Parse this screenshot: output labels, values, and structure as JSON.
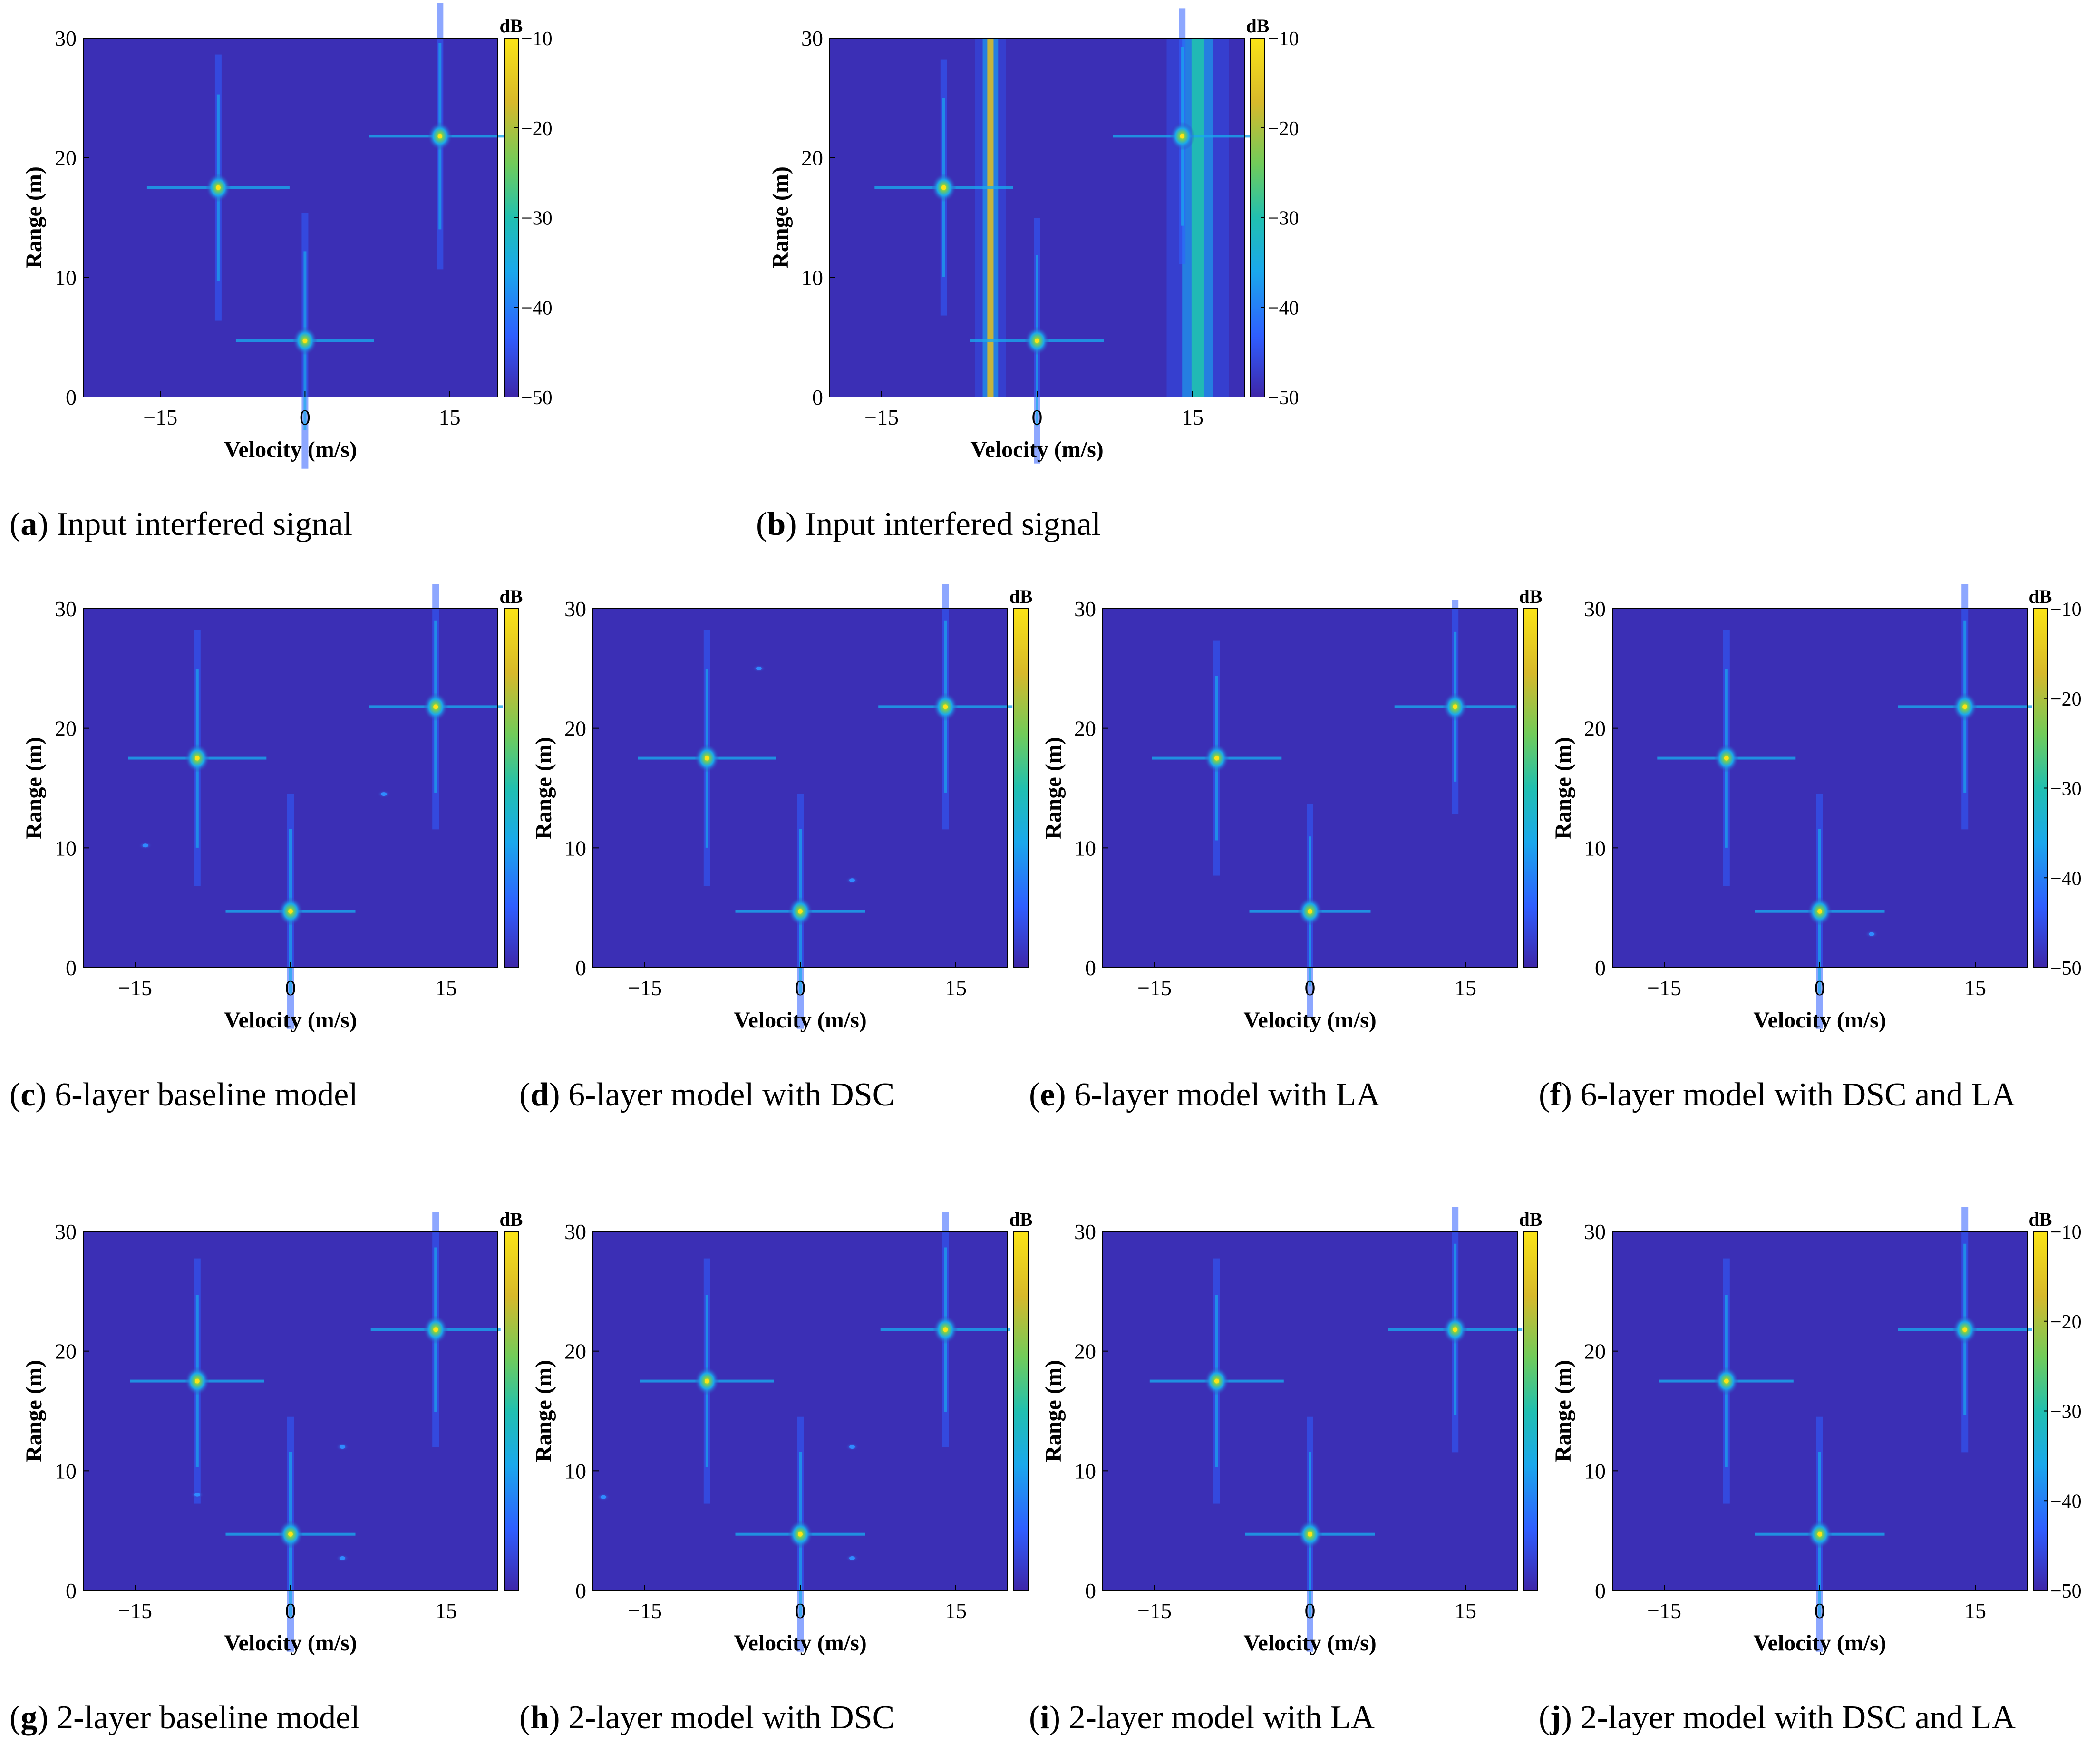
{
  "colors": {
    "background": "#3b2fb5",
    "colormap": [
      "#3e26a8",
      "#2f5eff",
      "#1aa8ec",
      "#21c0b0",
      "#71cc5a",
      "#d7b92b",
      "#fbe416"
    ]
  },
  "colorbar": {
    "unit": "dB",
    "ticks": [
      "−10",
      "−20",
      "−30",
      "−40",
      "−50"
    ]
  },
  "chart_data": [
    {
      "id": "a",
      "type": "heatmap",
      "title": "",
      "xlabel": "Velocity (m/s)",
      "ylabel": "Range (m)",
      "xlim": [
        -23,
        20
      ],
      "ylim": [
        0,
        30
      ],
      "clim": [
        -50,
        -10
      ],
      "xticks": [
        "−15",
        "0",
        "15"
      ],
      "yticks": [
        "0",
        "10",
        "20",
        "30"
      ],
      "colorbar_ticks": true,
      "caption_letter": "a",
      "caption_text": " Input interfered signal",
      "peaks": [
        {
          "v": -9,
          "r": 17.5,
          "level_db": -10
        },
        {
          "v": 14,
          "r": 21.8,
          "level_db": -10
        },
        {
          "v": 0,
          "r": 4.7,
          "level_db": -12
        }
      ],
      "interference_bands": []
    },
    {
      "id": "b",
      "type": "heatmap",
      "title": "",
      "xlabel": "Velocity (m/s)",
      "ylabel": "Range (m)",
      "xlim": [
        -20,
        20
      ],
      "ylim": [
        0,
        30
      ],
      "clim": [
        -50,
        -10
      ],
      "xticks": [
        "−15",
        "0",
        "15"
      ],
      "yticks": [
        "0",
        "10",
        "20",
        "30"
      ],
      "colorbar_ticks": true,
      "caption_letter": "b",
      "caption_text": " Input interfered signal",
      "peaks": [
        {
          "v": -9,
          "r": 17.5,
          "level_db": -12
        },
        {
          "v": 14,
          "r": 21.8,
          "level_db": -12
        },
        {
          "v": 0,
          "r": 4.7,
          "level_db": -14
        }
      ],
      "interference_bands": [
        {
          "v": -4.5,
          "width": 0.5,
          "level_db": -12
        },
        {
          "v": 15.5,
          "width": 1.0,
          "level_db": -25
        }
      ]
    },
    {
      "id": "c",
      "type": "heatmap",
      "title": "",
      "xlabel": "Velocity (m/s)",
      "ylabel": "Range (m)",
      "xlim": [
        -20,
        20
      ],
      "ylim": [
        0,
        30
      ],
      "clim": [
        -50,
        -10
      ],
      "xticks": [
        "−15",
        "0",
        "15"
      ],
      "yticks": [
        "0",
        "10",
        "20",
        "30"
      ],
      "colorbar_ticks": false,
      "caption_letter": "c",
      "caption_text": " 6-layer baseline model",
      "peaks": [
        {
          "v": -9,
          "r": 17.5,
          "level_db": -12
        },
        {
          "v": 14,
          "r": 21.8,
          "level_db": -14
        },
        {
          "v": 0,
          "r": 4.7,
          "level_db": -16
        },
        {
          "v": -14,
          "r": 10.2,
          "level_db": -40
        },
        {
          "v": 9,
          "r": 14.5,
          "level_db": -40
        }
      ],
      "interference_bands": []
    },
    {
      "id": "d",
      "type": "heatmap",
      "title": "",
      "xlabel": "Velocity (m/s)",
      "ylabel": "Range (m)",
      "xlim": [
        -20,
        20
      ],
      "ylim": [
        0,
        30
      ],
      "clim": [
        -50,
        -10
      ],
      "xticks": [
        "−15",
        "0",
        "15"
      ],
      "yticks": [
        "0",
        "10",
        "20",
        "30"
      ],
      "colorbar_ticks": false,
      "caption_letter": "d",
      "caption_text": " 6-layer model with DSC",
      "peaks": [
        {
          "v": -9,
          "r": 17.5,
          "level_db": -12
        },
        {
          "v": 14,
          "r": 21.8,
          "level_db": -14
        },
        {
          "v": 0,
          "r": 4.7,
          "level_db": -16
        },
        {
          "v": 5,
          "r": 7.3,
          "level_db": -40
        },
        {
          "v": -4,
          "r": 25,
          "level_db": -42
        }
      ],
      "interference_bands": []
    },
    {
      "id": "e",
      "type": "heatmap",
      "title": "",
      "xlabel": "Velocity (m/s)",
      "ylabel": "Range (m)",
      "xlim": [
        -20,
        20
      ],
      "ylim": [
        0,
        30
      ],
      "clim": [
        -50,
        -10
      ],
      "xticks": [
        "−15",
        "0",
        "15"
      ],
      "yticks": [
        "0",
        "10",
        "20",
        "30"
      ],
      "colorbar_ticks": false,
      "caption_letter": "e",
      "caption_text": " 6-layer model with LA",
      "peaks": [
        {
          "v": -9,
          "r": 17.5,
          "level_db": -16
        },
        {
          "v": 14,
          "r": 21.8,
          "level_db": -20
        },
        {
          "v": 0,
          "r": 4.7,
          "level_db": -20
        }
      ],
      "interference_bands": []
    },
    {
      "id": "f",
      "type": "heatmap",
      "title": "",
      "xlabel": "Velocity (m/s)",
      "ylabel": "Range (m)",
      "xlim": [
        -20,
        20
      ],
      "ylim": [
        0,
        30
      ],
      "clim": [
        -50,
        -10
      ],
      "xticks": [
        "−15",
        "0",
        "15"
      ],
      "yticks": [
        "0",
        "10",
        "20",
        "30"
      ],
      "colorbar_ticks": true,
      "caption_letter": "f",
      "caption_text": " 6-layer model with DSC and LA",
      "peaks": [
        {
          "v": -9,
          "r": 17.5,
          "level_db": -12
        },
        {
          "v": 14,
          "r": 21.8,
          "level_db": -14
        },
        {
          "v": 0,
          "r": 4.7,
          "level_db": -16
        },
        {
          "v": 5,
          "r": 2.8,
          "level_db": -40
        }
      ],
      "interference_bands": []
    },
    {
      "id": "g",
      "type": "heatmap",
      "title": "",
      "xlabel": "Velocity (m/s)",
      "ylabel": "Range (m)",
      "xlim": [
        -20,
        20
      ],
      "ylim": [
        0,
        30
      ],
      "clim": [
        -50,
        -10
      ],
      "xticks": [
        "−15",
        "0",
        "15"
      ],
      "yticks": [
        "0",
        "10",
        "20",
        "30"
      ],
      "colorbar_ticks": false,
      "caption_letter": "g",
      "caption_text": " 2-layer baseline model",
      "peaks": [
        {
          "v": -9,
          "r": 17.5,
          "level_db": -14
        },
        {
          "v": 14,
          "r": 21.8,
          "level_db": -16
        },
        {
          "v": 0,
          "r": 4.7,
          "level_db": -16
        },
        {
          "v": 5,
          "r": 2.7,
          "level_db": -38
        },
        {
          "v": -9,
          "r": 8,
          "level_db": -38
        },
        {
          "v": 5,
          "r": 12,
          "level_db": -42
        }
      ],
      "interference_bands": []
    },
    {
      "id": "h",
      "type": "heatmap",
      "title": "",
      "xlabel": "Velocity (m/s)",
      "ylabel": "Range (m)",
      "xlim": [
        -20,
        20
      ],
      "ylim": [
        0,
        30
      ],
      "clim": [
        -50,
        -10
      ],
      "xticks": [
        "−15",
        "0",
        "15"
      ],
      "yticks": [
        "0",
        "10",
        "20",
        "30"
      ],
      "colorbar_ticks": false,
      "caption_letter": "h",
      "caption_text": " 2-layer model with DSC",
      "peaks": [
        {
          "v": -9,
          "r": 17.5,
          "level_db": -14
        },
        {
          "v": 14,
          "r": 21.8,
          "level_db": -16
        },
        {
          "v": 0,
          "r": 4.7,
          "level_db": -16
        },
        {
          "v": 5,
          "r": 2.7,
          "level_db": -38
        },
        {
          "v": 5,
          "r": 12,
          "level_db": -40
        },
        {
          "v": -19,
          "r": 7.8,
          "level_db": -40
        }
      ],
      "interference_bands": []
    },
    {
      "id": "i",
      "type": "heatmap",
      "title": "",
      "xlabel": "Velocity (m/s)",
      "ylabel": "Range (m)",
      "xlim": [
        -20,
        20
      ],
      "ylim": [
        0,
        30
      ],
      "clim": [
        -50,
        -10
      ],
      "xticks": [
        "−15",
        "0",
        "15"
      ],
      "yticks": [
        "0",
        "10",
        "20",
        "30"
      ],
      "colorbar_ticks": false,
      "caption_letter": "i",
      "caption_text": " 2-layer model with LA",
      "peaks": [
        {
          "v": -9,
          "r": 17.5,
          "level_db": -14
        },
        {
          "v": 14,
          "r": 21.8,
          "level_db": -14
        },
        {
          "v": 0,
          "r": 4.7,
          "level_db": -16
        }
      ],
      "interference_bands": []
    },
    {
      "id": "j",
      "type": "heatmap",
      "title": "",
      "xlabel": "Velocity (m/s)",
      "ylabel": "Range (m)",
      "xlim": [
        -20,
        20
      ],
      "ylim": [
        0,
        30
      ],
      "clim": [
        -50,
        -10
      ],
      "xticks": [
        "−15",
        "0",
        "15"
      ],
      "yticks": [
        "0",
        "10",
        "20",
        "30"
      ],
      "colorbar_ticks": true,
      "caption_letter": "j",
      "caption_text": " 2-layer model with DSC and LA",
      "peaks": [
        {
          "v": -9,
          "r": 17.5,
          "level_db": -14
        },
        {
          "v": 14,
          "r": 21.8,
          "level_db": -14
        },
        {
          "v": 0,
          "r": 4.7,
          "level_db": -16
        }
      ],
      "interference_bands": []
    }
  ]
}
